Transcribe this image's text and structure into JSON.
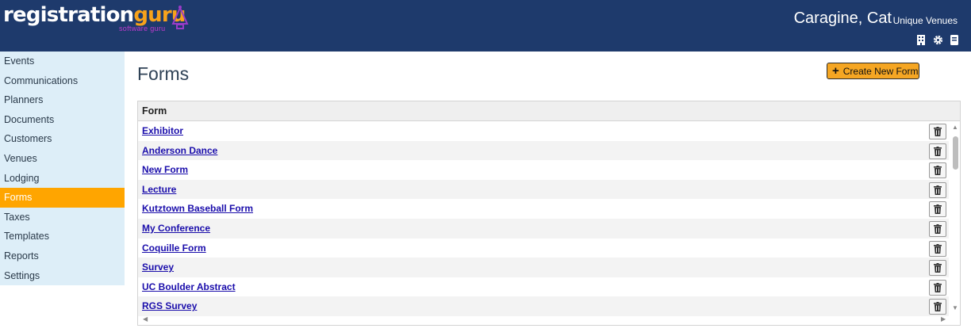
{
  "header": {
    "logo_primary": "registration",
    "logo_accent": "guru",
    "logo_sub": "software guru",
    "user_name": "Caragine, Cat",
    "organization": "Unique Venues",
    "icons": [
      "building-icon",
      "gear-icon",
      "book-icon"
    ]
  },
  "sidebar": {
    "items": [
      {
        "label": "Events"
      },
      {
        "label": "Communications"
      },
      {
        "label": "Planners"
      },
      {
        "label": "Documents"
      },
      {
        "label": "Customers"
      },
      {
        "label": "Venues"
      },
      {
        "label": "Lodging"
      },
      {
        "label": "Forms"
      },
      {
        "label": "Taxes"
      },
      {
        "label": "Templates"
      },
      {
        "label": "Reports"
      },
      {
        "label": "Settings"
      }
    ],
    "active_index": 7
  },
  "main": {
    "title": "Forms",
    "create_button": "Create New Form",
    "table": {
      "column": "Form",
      "rows": [
        {
          "name": "Exhibitor"
        },
        {
          "name": "Anderson Dance"
        },
        {
          "name": "New Form"
        },
        {
          "name": "Lecture"
        },
        {
          "name": "Kutztown Baseball Form"
        },
        {
          "name": "My Conference"
        },
        {
          "name": "Coquille Form"
        },
        {
          "name": "Survey"
        },
        {
          "name": "UC Boulder Abstract"
        },
        {
          "name": "RGS Survey"
        }
      ]
    }
  },
  "colors": {
    "header_bg": "#1e3a6c",
    "accent": "#ffa500",
    "sidebar_bg": "#ddeef8",
    "link": "#1a0dab"
  }
}
